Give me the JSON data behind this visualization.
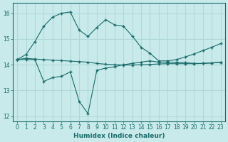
{
  "background_color": "#c8eaea",
  "grid_color": "#b0d8d8",
  "line_color": "#1a6b6b",
  "xlabel": "Humidex (Indice chaleur)",
  "xlim": [
    -0.5,
    23.5
  ],
  "ylim": [
    11.8,
    16.4
  ],
  "yticks": [
    12,
    13,
    14,
    15,
    16
  ],
  "xticks": [
    0,
    1,
    2,
    3,
    4,
    5,
    6,
    7,
    8,
    9,
    10,
    11,
    12,
    13,
    14,
    15,
    16,
    17,
    18,
    19,
    20,
    21,
    22,
    23
  ],
  "line1_x": [
    0,
    1,
    2,
    3,
    4,
    5,
    6,
    7,
    8,
    9,
    10,
    11,
    12,
    13,
    14,
    15,
    16,
    17,
    18,
    19,
    20,
    21,
    22,
    23
  ],
  "line1_y": [
    14.2,
    14.25,
    14.22,
    14.2,
    14.18,
    14.16,
    14.14,
    14.12,
    14.1,
    14.05,
    14.02,
    14.0,
    13.99,
    13.99,
    14.0,
    14.01,
    14.03,
    14.04,
    14.04,
    14.04,
    14.04,
    14.05,
    14.07,
    14.1
  ],
  "line2_x": [
    0,
    1,
    2,
    3,
    4,
    5,
    6,
    7,
    8,
    9,
    10,
    11,
    12,
    13,
    14,
    15,
    16,
    17,
    18,
    19,
    20,
    21,
    22,
    23
  ],
  "line2_y": [
    14.2,
    14.4,
    14.9,
    15.5,
    15.85,
    16.0,
    16.05,
    15.35,
    15.1,
    15.45,
    15.75,
    15.55,
    15.5,
    15.12,
    14.68,
    14.45,
    14.15,
    14.15,
    14.2,
    14.3,
    14.42,
    14.55,
    14.68,
    14.82
  ],
  "line3_x": [
    0,
    1,
    2,
    3,
    4,
    5,
    6,
    7,
    8,
    9,
    10,
    11,
    12,
    13,
    14,
    15,
    16,
    17,
    18,
    19,
    20,
    21,
    22,
    23
  ],
  "line3_y": [
    14.2,
    14.2,
    14.2,
    13.35,
    13.5,
    13.55,
    13.72,
    12.58,
    12.1,
    13.78,
    13.87,
    13.92,
    14.0,
    14.05,
    14.1,
    14.15,
    14.1,
    14.1,
    14.1,
    14.08,
    14.05,
    14.05,
    14.07,
    14.1
  ],
  "marker": "+"
}
